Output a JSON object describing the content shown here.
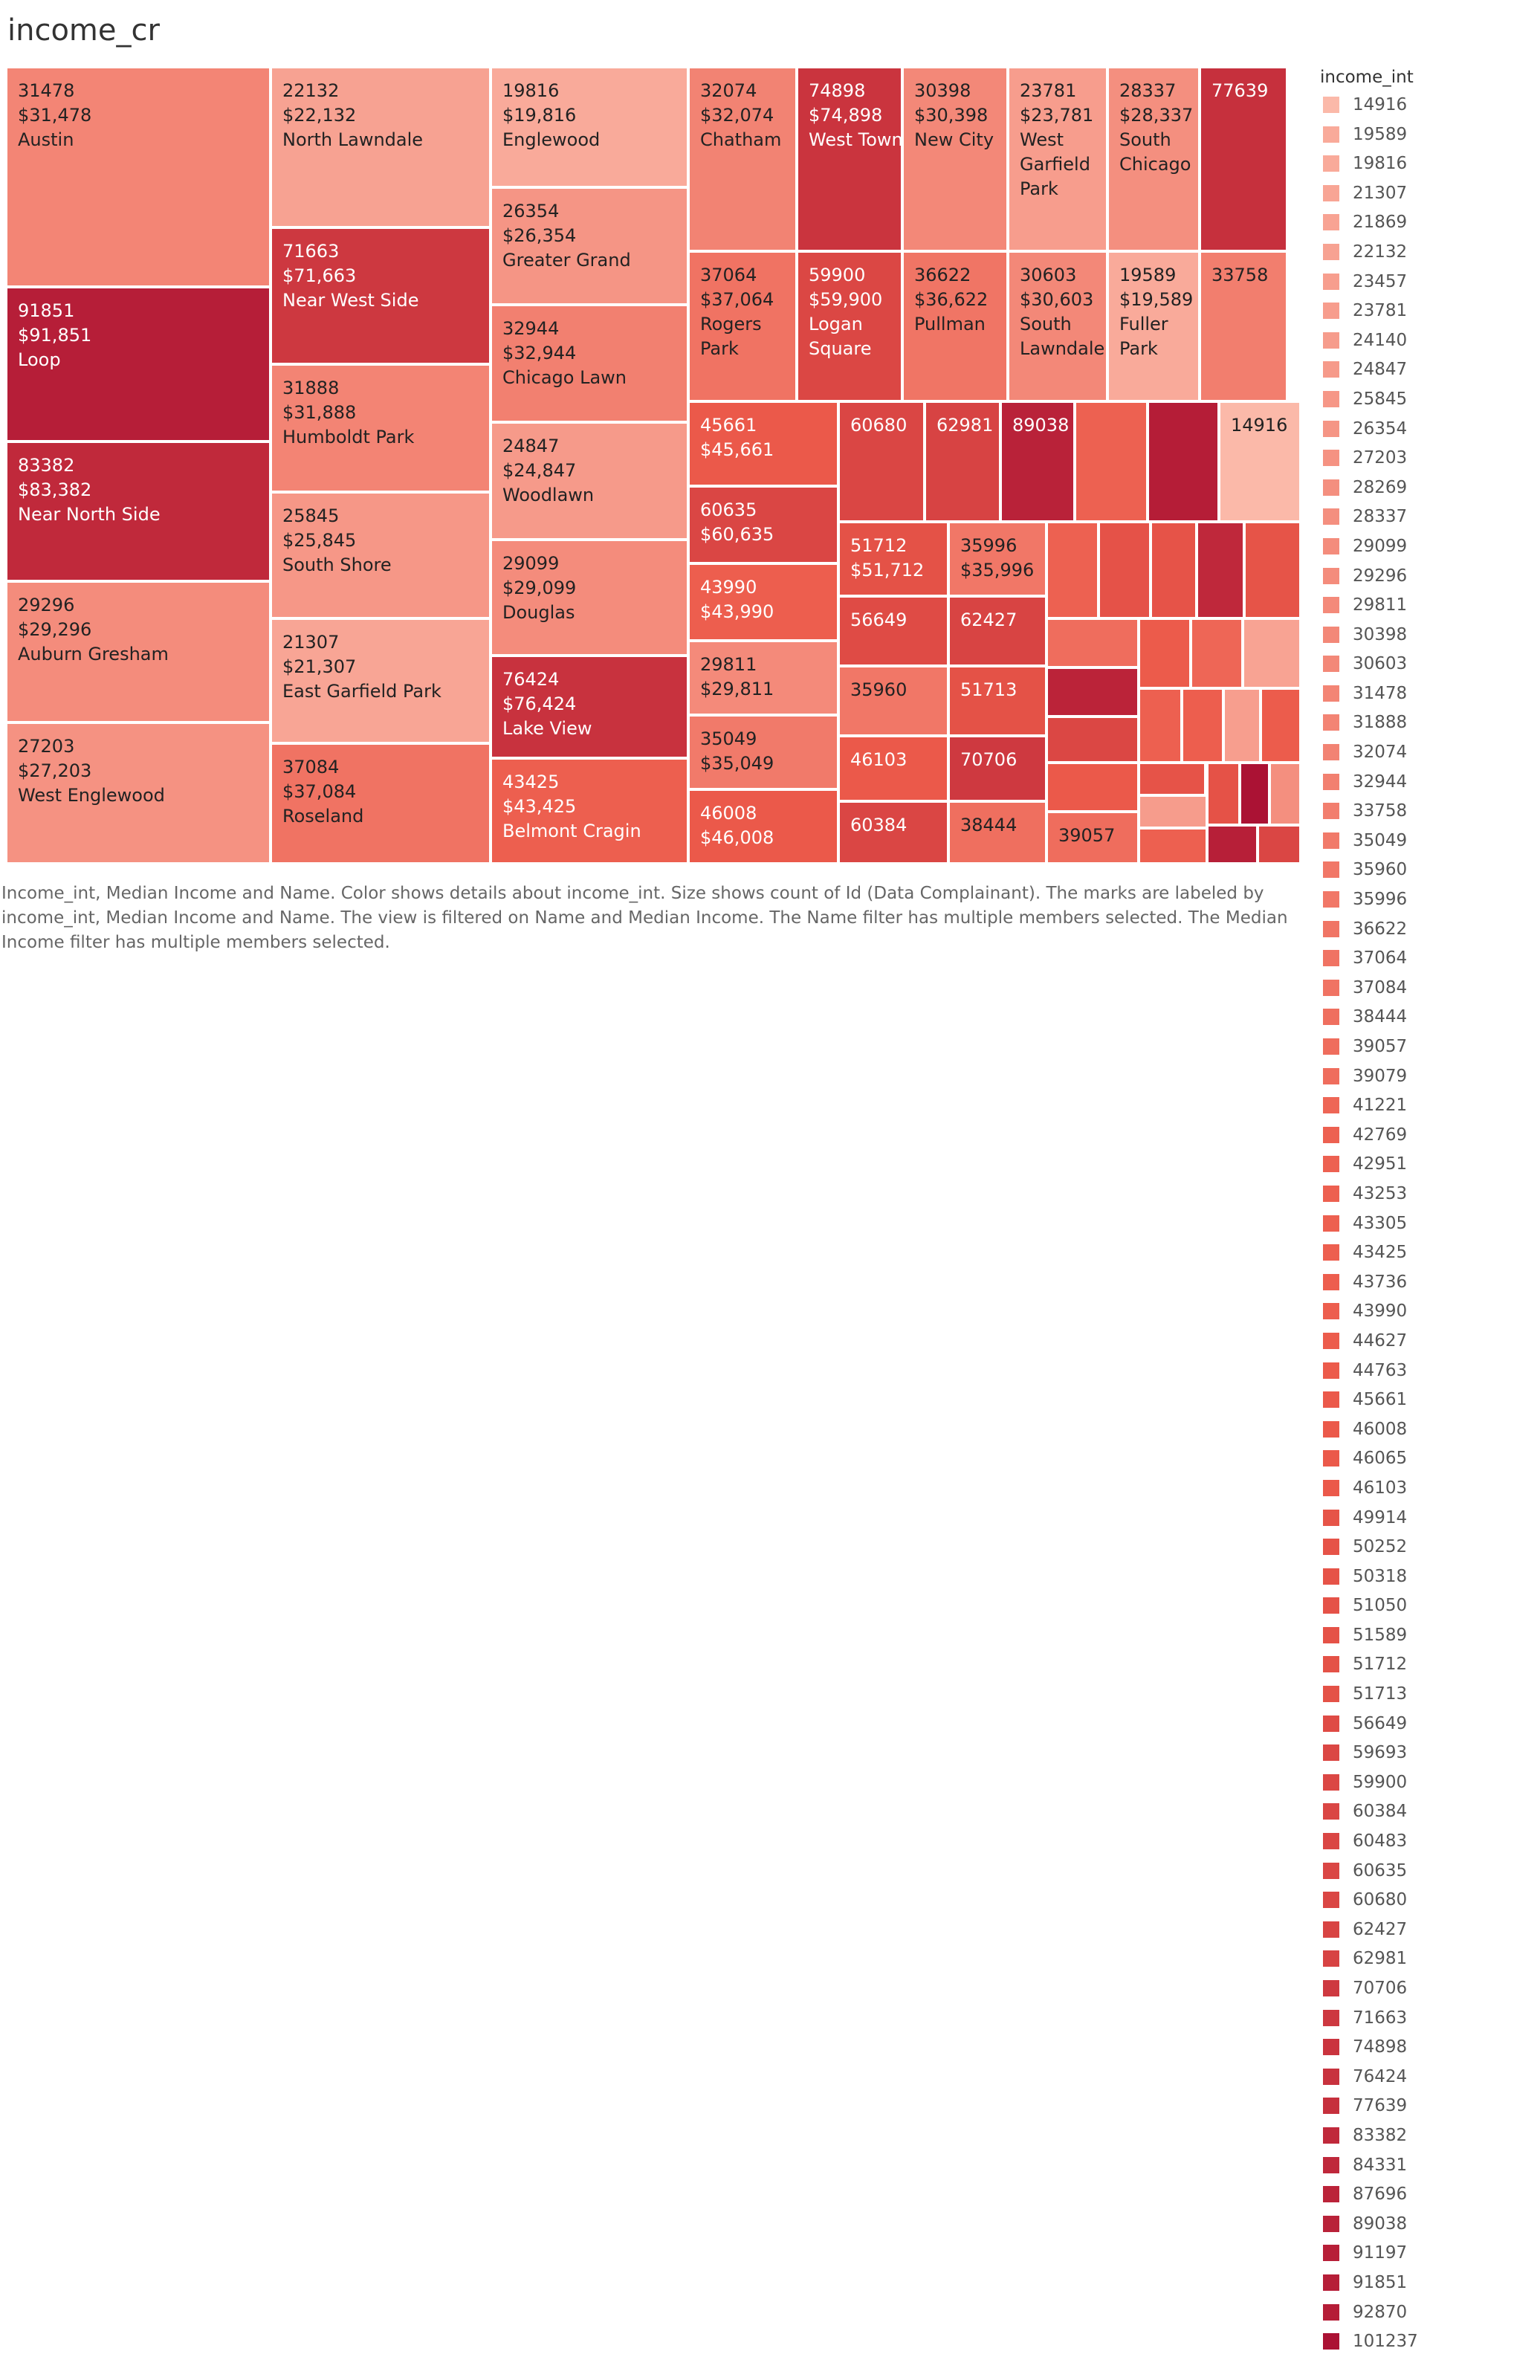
{
  "title": "income_cr",
  "caption": "Income_int, Median Income and Name.  Color shows details about income_int.  Size shows count of Id (Data Complainant).  The marks are labeled by income_int, Median Income and Name. The view is filtered on Name and Median Income. The Name filter has multiple members selected. The Median Income filter has multiple members selected.",
  "legend": {
    "title": "income_int",
    "items": [
      "14916",
      "19589",
      "19816",
      "21307",
      "21869",
      "22132",
      "23457",
      "23781",
      "24140",
      "24847",
      "25845",
      "26354",
      "27203",
      "28269",
      "28337",
      "29099",
      "29296",
      "29811",
      "30398",
      "30603",
      "31478",
      "31888",
      "32074",
      "32944",
      "33758",
      "35049",
      "35960",
      "35996",
      "36622",
      "37064",
      "37084",
      "38444",
      "39057",
      "39079",
      "41221",
      "42769",
      "42951",
      "43253",
      "43305",
      "43425",
      "43736",
      "43990",
      "44627",
      "44763",
      "45661",
      "46008",
      "46065",
      "46103",
      "49914",
      "50252",
      "50318",
      "51050",
      "51589",
      "51712",
      "51713",
      "56649",
      "59693",
      "59900",
      "60384",
      "60483",
      "60635",
      "60680",
      "62427",
      "62981",
      "70706",
      "71663",
      "74898",
      "76424",
      "77639",
      "83382",
      "84331",
      "87696",
      "89038",
      "91197",
      "91851",
      "92870",
      "101237"
    ]
  },
  "colors": {
    "low": "#fbb9a9",
    "mid": "#ec5a4a",
    "high": "#ab1234"
  },
  "chart_data": {
    "type": "treemap",
    "size_measure": "count of Id (Data Complainant)",
    "color_measure": "income_int",
    "tiles": [
      {
        "income_int": 31478,
        "median_income": "$31,478",
        "name": "Austin"
      },
      {
        "income_int": 91851,
        "median_income": "$91,851",
        "name": "Loop"
      },
      {
        "income_int": 83382,
        "median_income": "$83,382",
        "name": "Near North Side"
      },
      {
        "income_int": 29296,
        "median_income": "$29,296",
        "name": "Auburn Gresham"
      },
      {
        "income_int": 27203,
        "median_income": "$27,203",
        "name": "West Englewood"
      },
      {
        "income_int": 22132,
        "median_income": "$22,132",
        "name": "North Lawndale"
      },
      {
        "income_int": 71663,
        "median_income": "$71,663",
        "name": "Near West Side"
      },
      {
        "income_int": 31888,
        "median_income": "$31,888",
        "name": "Humboldt Park"
      },
      {
        "income_int": 25845,
        "median_income": "$25,845",
        "name": "South Shore"
      },
      {
        "income_int": 21307,
        "median_income": "$21,307",
        "name": "East Garfield Park"
      },
      {
        "income_int": 37084,
        "median_income": "$37,084",
        "name": "Roseland"
      },
      {
        "income_int": 19816,
        "median_income": "$19,816",
        "name": "Englewood"
      },
      {
        "income_int": 26354,
        "median_income": "$26,354",
        "name": "Greater Grand"
      },
      {
        "income_int": 32944,
        "median_income": "$32,944",
        "name": "Chicago Lawn"
      },
      {
        "income_int": 24847,
        "median_income": "$24,847",
        "name": "Woodlawn"
      },
      {
        "income_int": 29099,
        "median_income": "$29,099",
        "name": "Douglas"
      },
      {
        "income_int": 76424,
        "median_income": "$76,424",
        "name": "Lake View"
      },
      {
        "income_int": 43425,
        "median_income": "$43,425",
        "name": "Belmont Cragin"
      },
      {
        "income_int": 32074,
        "median_income": "$32,074",
        "name": "Chatham"
      },
      {
        "income_int": 74898,
        "median_income": "$74,898",
        "name": "West Town"
      },
      {
        "income_int": 30398,
        "median_income": "$30,398",
        "name": "New City"
      },
      {
        "income_int": 23781,
        "median_income": "$23,781",
        "name": "West Garfield Park"
      },
      {
        "income_int": 28337,
        "median_income": "$28,337",
        "name": "South Chicago"
      },
      {
        "income_int": 77639
      },
      {
        "income_int": 37064,
        "median_income": "$37,064",
        "name": "Rogers Park"
      },
      {
        "income_int": 59900,
        "median_income": "$59,900",
        "name": "Logan Square"
      },
      {
        "income_int": 36622,
        "median_income": "$36,622",
        "name": "Pullman"
      },
      {
        "income_int": 30603,
        "median_income": "$30,603",
        "name": "South Lawndale"
      },
      {
        "income_int": 19589,
        "median_income": "$19,589",
        "name": "Fuller Park"
      },
      {
        "income_int": 33758
      },
      {
        "income_int": 45661,
        "median_income": "$45,661"
      },
      {
        "income_int": 60635,
        "median_income": "$60,635"
      },
      {
        "income_int": 43990,
        "median_income": "$43,990"
      },
      {
        "income_int": 29811,
        "median_income": "$29,811"
      },
      {
        "income_int": 35049,
        "median_income": "$35,049"
      },
      {
        "income_int": 46008,
        "median_income": "$46,008"
      },
      {
        "income_int": 60680
      },
      {
        "income_int": 62981
      },
      {
        "income_int": 51712,
        "median_income": "$51,712"
      },
      {
        "income_int": 35996,
        "median_income": "$35,996"
      },
      {
        "income_int": 56649
      },
      {
        "income_int": 62427
      },
      {
        "income_int": 35960
      },
      {
        "income_int": 51713
      },
      {
        "income_int": 46103
      },
      {
        "income_int": 70706
      },
      {
        "income_int": 60384
      },
      {
        "income_int": 38444
      },
      {
        "income_int": 39079
      },
      {
        "income_int": 87696
      },
      {
        "income_int": 59693
      },
      {
        "income_int": 46065
      },
      {
        "income_int": 89038
      },
      {
        "income_int": 42951
      },
      {
        "income_int": 92870
      },
      {
        "income_int": 14916
      },
      {
        "income_int": 42769
      },
      {
        "income_int": 51050
      },
      {
        "income_int": 50252
      },
      {
        "income_int": 84331
      },
      {
        "income_int": 49914
      },
      {
        "income_int": 44763
      },
      {
        "income_int": 41221
      },
      {
        "income_int": 21869
      },
      {
        "income_int": 43305
      },
      {
        "income_int": 43736
      },
      {
        "income_int": 23457
      },
      {
        "income_int": 44627
      },
      {
        "income_int": 39057
      },
      {
        "income_int": 50318
      },
      {
        "income_int": 24140
      },
      {
        "income_int": 43253
      },
      {
        "income_int": 51589
      },
      {
        "income_int": 101237
      },
      {
        "income_int": 28269
      },
      {
        "income_int": 91197
      },
      {
        "income_int": 60483
      }
    ]
  }
}
